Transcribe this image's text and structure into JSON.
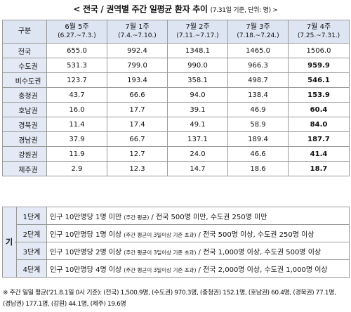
{
  "title": "< 전국 / 권역별 주간 일평균 환자 추이",
  "title_sub": "(7.31일 기준, 단위: 명) >",
  "header": {
    "corner": "구분",
    "weeks": [
      {
        "name": "6월 5주",
        "range": "(6.27.~7.3.)"
      },
      {
        "name": "7월 1주",
        "range": "(7.4.~7.10.)"
      },
      {
        "name": "7월 2주",
        "range": "(7.11.~7.17.)"
      },
      {
        "name": "7월 3주",
        "range": "(7.18.~7.24.)"
      },
      {
        "name": "7월 4주",
        "range": "(7.25.~7.31.)"
      }
    ]
  },
  "national": {
    "label": "전국",
    "values": [
      "655.0",
      "992.4",
      "1348.1",
      "1465.0",
      "1506.0"
    ]
  },
  "regions": [
    {
      "label": "수도권",
      "values": [
        "531.3",
        "799.0",
        "990.0",
        "966.3",
        "959.9"
      ]
    },
    {
      "label": "비수도권",
      "values": [
        "123.7",
        "193.4",
        "358.1",
        "498.7",
        "546.1"
      ]
    },
    {
      "label": "충청권",
      "values": [
        "43.7",
        "66.6",
        "94.0",
        "138.4",
        "153.9"
      ]
    },
    {
      "label": "호남권",
      "values": [
        "16.0",
        "17.7",
        "39.1",
        "46.9",
        "60.4"
      ]
    },
    {
      "label": "경북권",
      "values": [
        "11.4",
        "17.4",
        "49.1",
        "58.9",
        "84.0"
      ]
    },
    {
      "label": "경남권",
      "values": [
        "37.9",
        "66.7",
        "137.1",
        "189.4",
        "187.7"
      ]
    },
    {
      "label": "강원권",
      "values": [
        "11.9",
        "12.7",
        "24.0",
        "46.6",
        "41.4"
      ]
    },
    {
      "label": "제주권",
      "values": [
        "2.9",
        "12.3",
        "14.7",
        "18.6",
        "18.7"
      ]
    }
  ],
  "criteria": {
    "label": "기 준",
    "levels": [
      {
        "name": "1단계",
        "a": "인구 10만명당 1명 미만 ",
        "b": "(주간 평균)",
        "c": " / 전국 500명 미만, 수도권 250명 미만"
      },
      {
        "name": "2단계",
        "a": "인구 10만명당 1명 이상 ",
        "b": "(주간 평균이 3일이상 기준 초과)",
        "c": " / 전국 500명 이상, 수도권 250명 이상"
      },
      {
        "name": "3단계",
        "a": "인구 10만명당 2명 이상 ",
        "b": "(주간 평균이 3일이상 기준 초과)",
        "c": " / 전국 1,000명 이상, 수도권 500명 이상"
      },
      {
        "name": "4단계",
        "a": "인구 10만명당 4명 이상 ",
        "b": "(주간 평균이 3일이상 기준 초과)",
        "c": " / 전국 2,000명 이상, 수도권 1,000명 이상"
      }
    ]
  },
  "note1": "※ 주간 일일 평균('21.8.1일 0시 기준): (전국) 1,500.9명, (수도권) 970.3명, (충청권) 152.1명, (호남권) 60.4명, (경북권) 77.1명,",
  "note2": "(경남권) 177.1명, (강원) 44.1명, (제주) 19.6명"
}
